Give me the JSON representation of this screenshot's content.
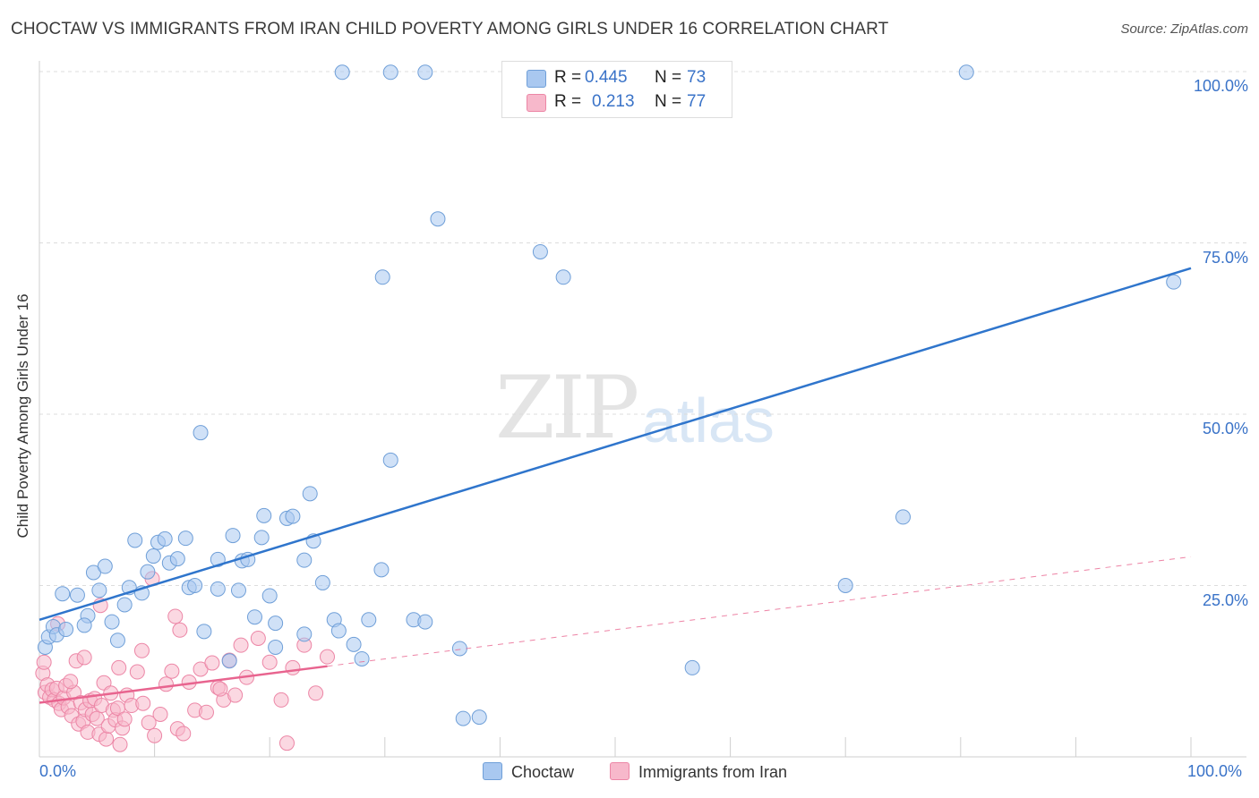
{
  "header": {
    "title": "CHOCTAW VS IMMIGRANTS FROM IRAN CHILD POVERTY AMONG GIRLS UNDER 16 CORRELATION CHART",
    "source": "Source: ZipAtlas.com"
  },
  "watermark": {
    "zip": "ZIP",
    "atlas": "atlas"
  },
  "legend": {
    "rows": [
      {
        "r_label": "R =",
        "r_value": "0.445",
        "n_label": "N =",
        "n_value": "73",
        "color": "#a9c8f0"
      },
      {
        "r_label": "R =",
        "r_value": "0.213",
        "n_label": "N =",
        "n_value": "77",
        "color": "#f7b8cb"
      }
    ]
  },
  "bottom_legend": {
    "choctaw": "Choctaw",
    "iran": "Immigrants from Iran"
  },
  "colors": {
    "choctaw_fill": "#a9c8f0",
    "choctaw_stroke": "#6f9fd8",
    "choctaw_line": "#2f75cc",
    "iran_fill": "#f7b8cb",
    "iran_stroke": "#ec86a6",
    "iran_line": "#e8648f",
    "grid": "#dcdcdc",
    "tick_text": "#3a73c8"
  },
  "chart_data": {
    "type": "scatter",
    "title": "CHOCTAW VS IMMIGRANTS FROM IRAN CHILD POVERTY AMONG GIRLS UNDER 16 CORRELATION CHART",
    "xlabel": "",
    "ylabel": "Child Poverty Among Girls Under 16",
    "xlim": [
      0,
      100
    ],
    "ylim": [
      0,
      100
    ],
    "x_tick_labels": [
      "0.0%",
      "100.0%"
    ],
    "y_ticks": [
      {
        "value": 25,
        "label": "25.0%"
      },
      {
        "value": 50,
        "label": "50.0%"
      },
      {
        "value": 75,
        "label": "75.0%"
      },
      {
        "value": 100,
        "label": "100.0%"
      }
    ],
    "grid": true,
    "legend_position": "top-center",
    "series": [
      {
        "name": "Choctaw",
        "r": 0.445,
        "n": 73,
        "trend": {
          "x": [
            0,
            100
          ],
          "y": [
            20.0,
            71.3
          ],
          "style": "solid"
        },
        "points": [
          [
            0.5,
            16.0
          ],
          [
            0.8,
            17.5
          ],
          [
            1.2,
            19.0
          ],
          [
            1.5,
            17.8
          ],
          [
            2.3,
            18.6
          ],
          [
            2.0,
            23.8
          ],
          [
            3.3,
            23.6
          ],
          [
            4.2,
            20.6
          ],
          [
            3.9,
            19.2
          ],
          [
            4.7,
            26.9
          ],
          [
            5.2,
            24.3
          ],
          [
            5.7,
            27.8
          ],
          [
            6.3,
            19.7
          ],
          [
            6.8,
            17.0
          ],
          [
            7.4,
            22.2
          ],
          [
            7.8,
            24.7
          ],
          [
            8.3,
            31.6
          ],
          [
            8.9,
            23.9
          ],
          [
            9.4,
            27.0
          ],
          [
            9.9,
            29.3
          ],
          [
            10.3,
            31.3
          ],
          [
            10.9,
            31.8
          ],
          [
            11.3,
            28.3
          ],
          [
            12.0,
            28.9
          ],
          [
            12.7,
            31.9
          ],
          [
            13.0,
            24.7
          ],
          [
            13.5,
            25.0
          ],
          [
            14.3,
            18.3
          ],
          [
            14.0,
            47.3
          ],
          [
            15.5,
            24.5
          ],
          [
            15.5,
            28.8
          ],
          [
            16.5,
            14.0
          ],
          [
            16.8,
            32.3
          ],
          [
            17.3,
            24.3
          ],
          [
            17.6,
            28.6
          ],
          [
            18.1,
            28.8
          ],
          [
            18.7,
            20.4
          ],
          [
            19.3,
            32.0
          ],
          [
            19.5,
            35.2
          ],
          [
            20.0,
            23.5
          ],
          [
            20.5,
            16.0
          ],
          [
            20.5,
            19.5
          ],
          [
            21.5,
            34.8
          ],
          [
            22.0,
            35.1
          ],
          [
            23.0,
            17.9
          ],
          [
            23.0,
            28.7
          ],
          [
            23.5,
            38.4
          ],
          [
            23.8,
            31.5
          ],
          [
            24.6,
            25.4
          ],
          [
            25.6,
            20.0
          ],
          [
            26.0,
            18.4
          ],
          [
            27.3,
            16.4
          ],
          [
            28.0,
            14.3
          ],
          [
            28.6,
            20.0
          ],
          [
            29.7,
            27.3
          ],
          [
            30.5,
            43.3
          ],
          [
            32.5,
            20.0
          ],
          [
            33.5,
            19.7
          ],
          [
            36.5,
            15.8
          ],
          [
            38.2,
            5.8
          ],
          [
            34.6,
            78.5
          ],
          [
            29.8,
            70.0
          ],
          [
            26.3,
            99.9
          ],
          [
            30.5,
            99.9
          ],
          [
            33.5,
            99.9
          ],
          [
            43.5,
            73.7
          ],
          [
            45.5,
            70.0
          ],
          [
            56.7,
            13.0
          ],
          [
            70.0,
            25.0
          ],
          [
            75.0,
            35.0
          ],
          [
            80.5,
            99.9
          ],
          [
            98.5,
            69.3
          ],
          [
            36.8,
            5.6
          ]
        ]
      },
      {
        "name": "Immigrants from Iran",
        "r": 0.213,
        "n": 77,
        "trend": {
          "x": [
            0,
            100
          ],
          "y": [
            7.9,
            29.2
          ],
          "style": "solid to x=25, dashed after"
        },
        "points": [
          [
            0.3,
            12.2
          ],
          [
            0.5,
            9.4
          ],
          [
            0.7,
            10.5
          ],
          [
            0.9,
            8.7
          ],
          [
            1.1,
            9.8
          ],
          [
            1.3,
            8.3
          ],
          [
            1.5,
            10.0
          ],
          [
            1.7,
            7.8
          ],
          [
            1.9,
            6.9
          ],
          [
            2.1,
            8.6
          ],
          [
            2.3,
            10.4
          ],
          [
            2.5,
            7.3
          ],
          [
            2.8,
            6.0
          ],
          [
            3.0,
            9.4
          ],
          [
            3.2,
            14.0
          ],
          [
            3.4,
            4.8
          ],
          [
            3.6,
            7.9
          ],
          [
            3.8,
            5.2
          ],
          [
            4.0,
            6.9
          ],
          [
            4.2,
            3.6
          ],
          [
            4.4,
            8.2
          ],
          [
            4.6,
            6.2
          ],
          [
            4.8,
            8.5
          ],
          [
            5.0,
            5.6
          ],
          [
            5.2,
            3.3
          ],
          [
            5.4,
            7.5
          ],
          [
            5.6,
            10.8
          ],
          [
            5.8,
            2.6
          ],
          [
            6.0,
            4.5
          ],
          [
            6.2,
            9.3
          ],
          [
            6.4,
            6.8
          ],
          [
            6.6,
            5.4
          ],
          [
            6.8,
            7.1
          ],
          [
            7.0,
            1.8
          ],
          [
            7.2,
            4.2
          ],
          [
            7.4,
            5.5
          ],
          [
            7.6,
            9.0
          ],
          [
            8.0,
            7.5
          ],
          [
            8.5,
            12.4
          ],
          [
            9.0,
            7.8
          ],
          [
            9.5,
            5.0
          ],
          [
            10.0,
            3.1
          ],
          [
            10.5,
            6.2
          ],
          [
            11.0,
            10.6
          ],
          [
            11.5,
            12.5
          ],
          [
            12.0,
            4.1
          ],
          [
            12.5,
            3.4
          ],
          [
            13.0,
            10.9
          ],
          [
            13.5,
            6.8
          ],
          [
            14.0,
            12.8
          ],
          [
            14.5,
            6.5
          ],
          [
            15.0,
            13.7
          ],
          [
            15.5,
            10.1
          ],
          [
            16.0,
            8.3
          ],
          [
            16.5,
            14.1
          ],
          [
            17.0,
            9.0
          ],
          [
            17.5,
            16.3
          ],
          [
            18.0,
            11.6
          ],
          [
            19.0,
            17.3
          ],
          [
            20.0,
            13.8
          ],
          [
            21.0,
            8.3
          ],
          [
            21.5,
            2.0
          ],
          [
            22.0,
            13.0
          ],
          [
            23.0,
            16.3
          ],
          [
            24.0,
            9.3
          ],
          [
            25.0,
            14.6
          ],
          [
            12.2,
            18.5
          ],
          [
            9.8,
            26.0
          ],
          [
            5.3,
            22.1
          ],
          [
            1.6,
            19.4
          ],
          [
            0.4,
            13.8
          ],
          [
            2.7,
            11.0
          ],
          [
            3.9,
            14.5
          ],
          [
            6.9,
            13.0
          ],
          [
            8.9,
            15.5
          ],
          [
            11.8,
            20.5
          ],
          [
            15.7,
            9.9
          ]
        ]
      }
    ]
  }
}
